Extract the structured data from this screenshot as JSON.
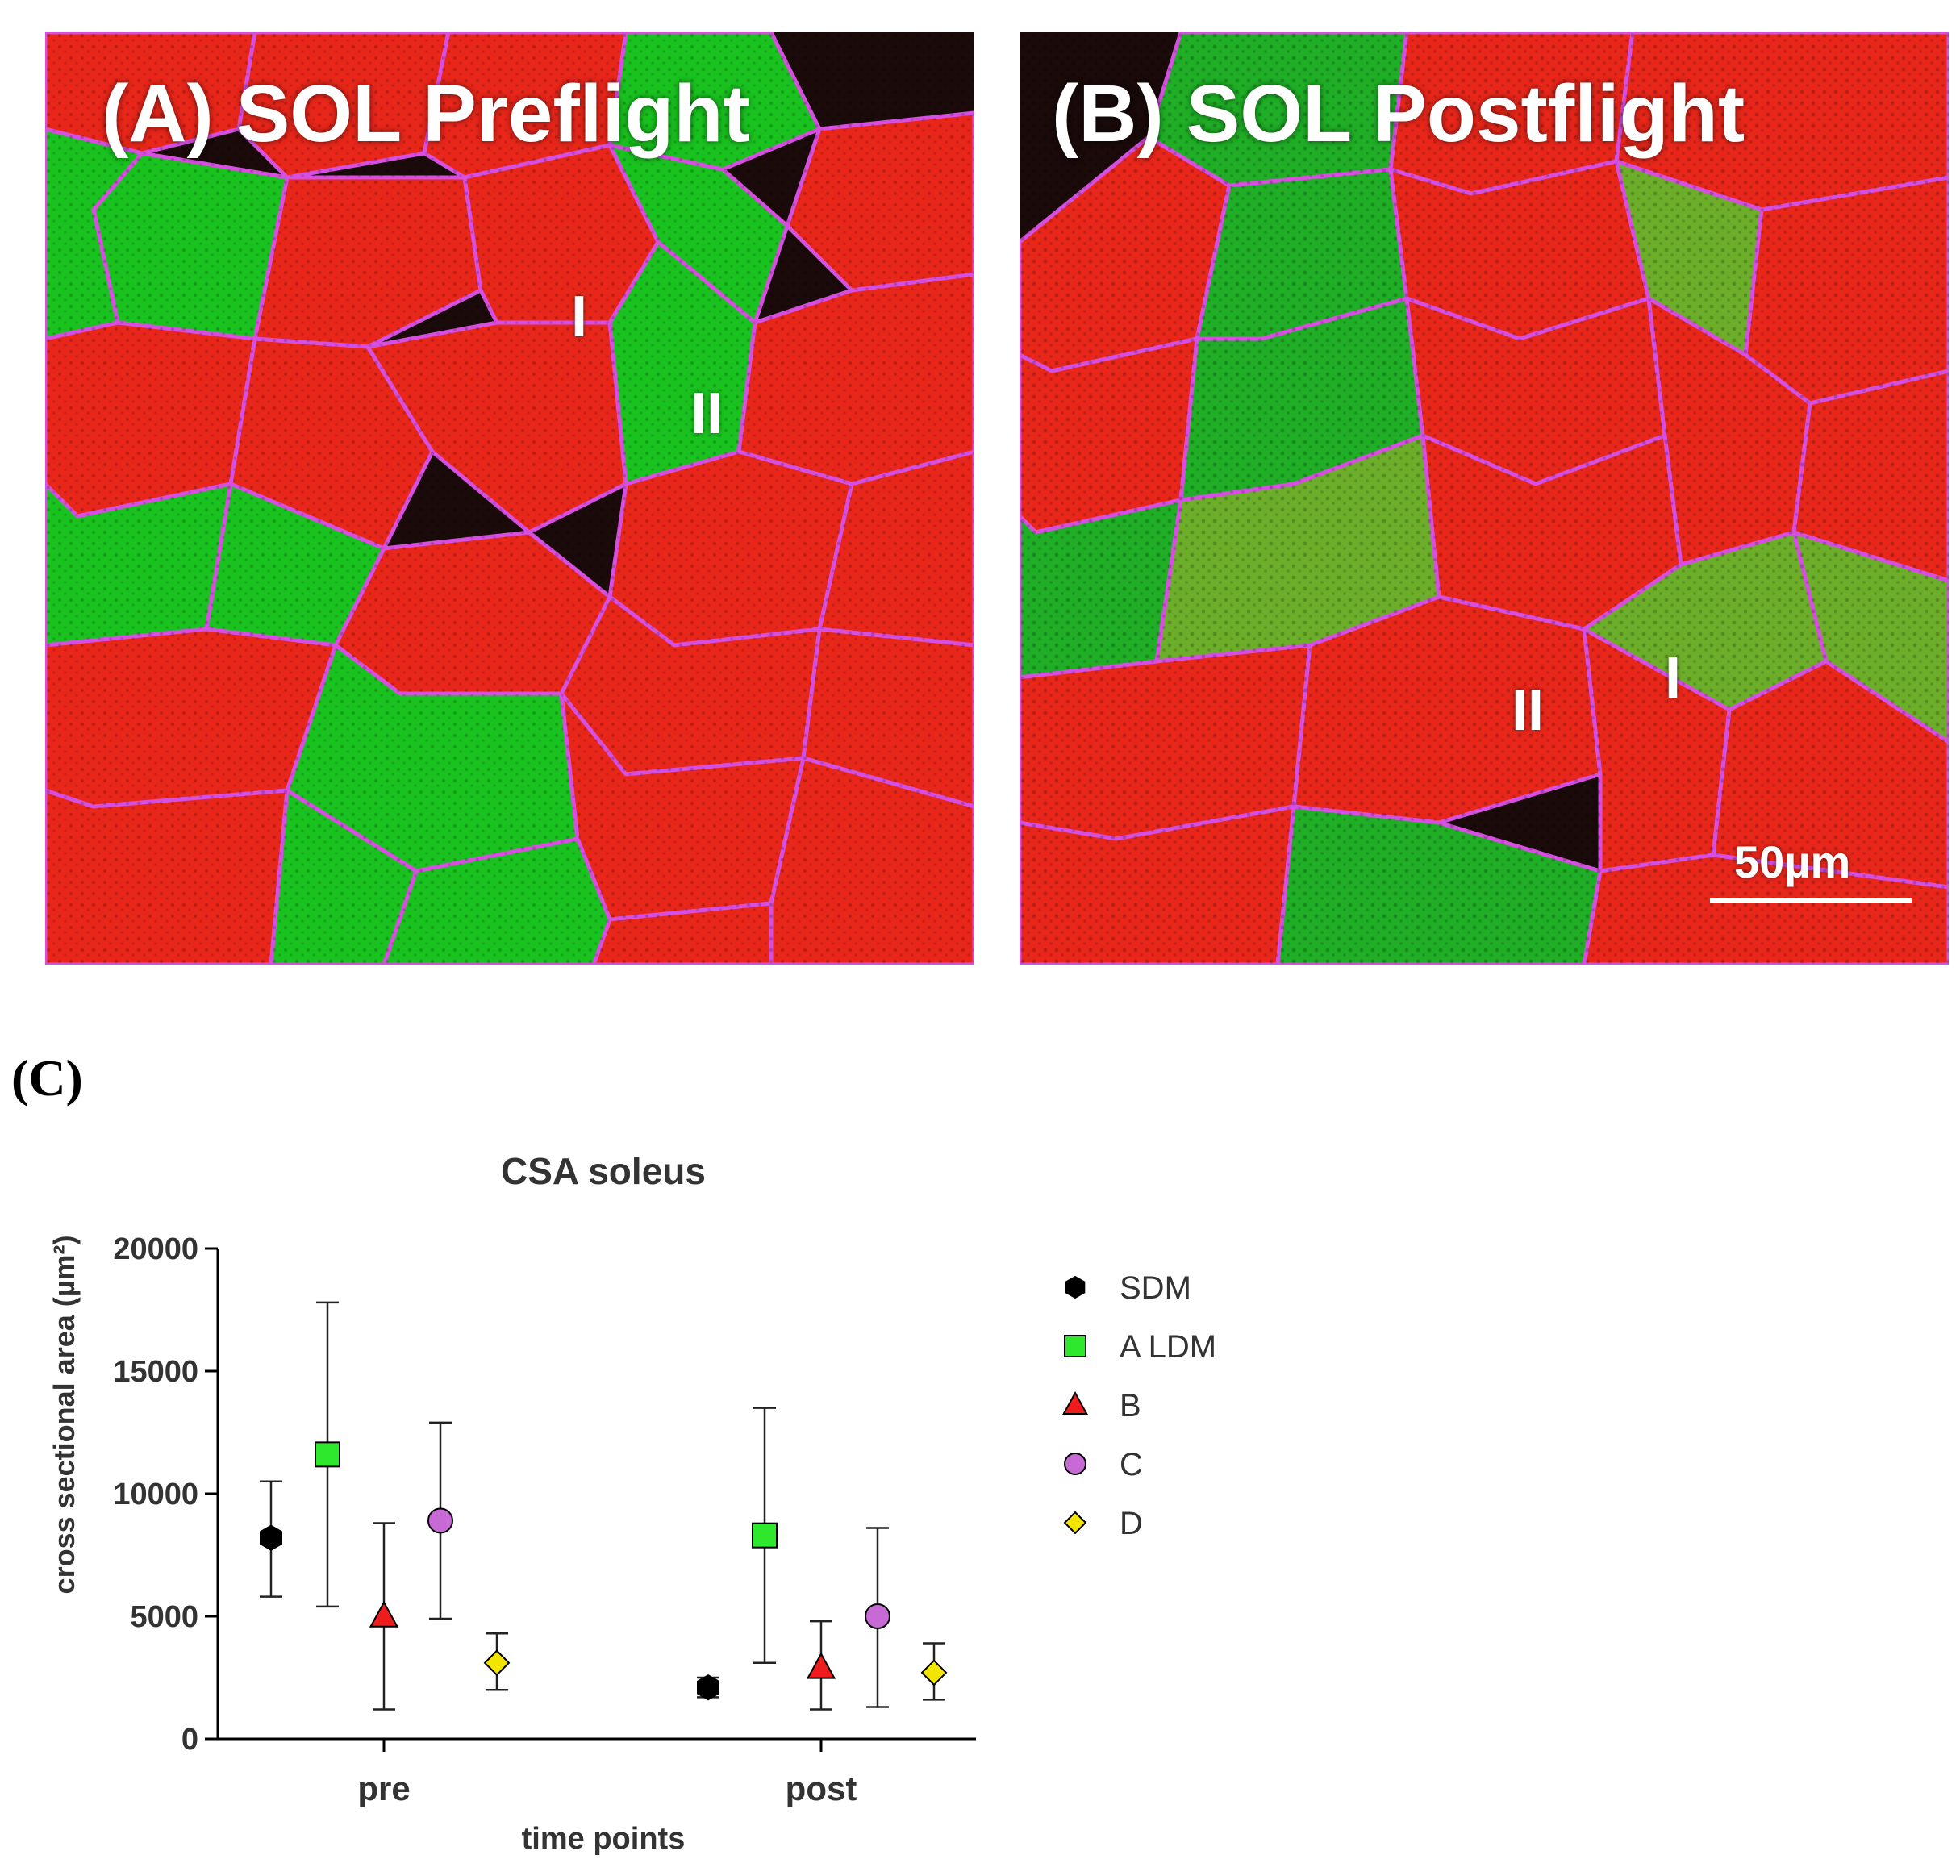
{
  "panels": [
    {
      "title": "(A) SOL Preflight",
      "fiber_labels": [
        "I",
        "II"
      ]
    },
    {
      "title": "(B) SOL Postflight",
      "fiber_labels": [
        "II",
        "I"
      ],
      "scale_bar": "50µm"
    }
  ],
  "panel_c_label": "(C)",
  "colors": {
    "type_I_fiber": "#e8261a",
    "type_II_fiber": "#19c21f",
    "membrane": "#d64fe0",
    "background": "#1a0a0a"
  },
  "chart_data": {
    "type": "scatter",
    "title": "CSA soleus",
    "xlabel": "time points",
    "ylabel": "cross sectional area (µm²)",
    "categories": [
      "pre",
      "post"
    ],
    "ylim": [
      0,
      20000
    ],
    "yticks": [
      0,
      5000,
      10000,
      15000,
      20000
    ],
    "legend_position": "right",
    "series": [
      {
        "name": "SDM",
        "marker": "hexagon",
        "color": "#000000",
        "values": [
          8200,
          2100
        ],
        "lower": [
          5800,
          1700
        ],
        "upper": [
          10500,
          2500
        ]
      },
      {
        "name": "A LDM",
        "marker": "square",
        "color": "#2ee82e",
        "values": [
          11600,
          8300
        ],
        "lower": [
          5400,
          3100
        ],
        "upper": [
          17800,
          13500
        ]
      },
      {
        "name": "B",
        "marker": "triangle",
        "color": "#ee1c1c",
        "values": [
          5000,
          2900
        ],
        "lower": [
          1200,
          1200
        ],
        "upper": [
          8800,
          4800
        ]
      },
      {
        "name": "C",
        "marker": "circle",
        "color": "#c86ad6",
        "values": [
          8900,
          5000
        ],
        "lower": [
          4900,
          1300
        ],
        "upper": [
          12900,
          8600
        ]
      },
      {
        "name": "D",
        "marker": "diamond",
        "color": "#f2e600",
        "values": [
          3100,
          2700
        ],
        "lower": [
          2000,
          1600
        ],
        "upper": [
          4300,
          3900
        ]
      }
    ]
  }
}
